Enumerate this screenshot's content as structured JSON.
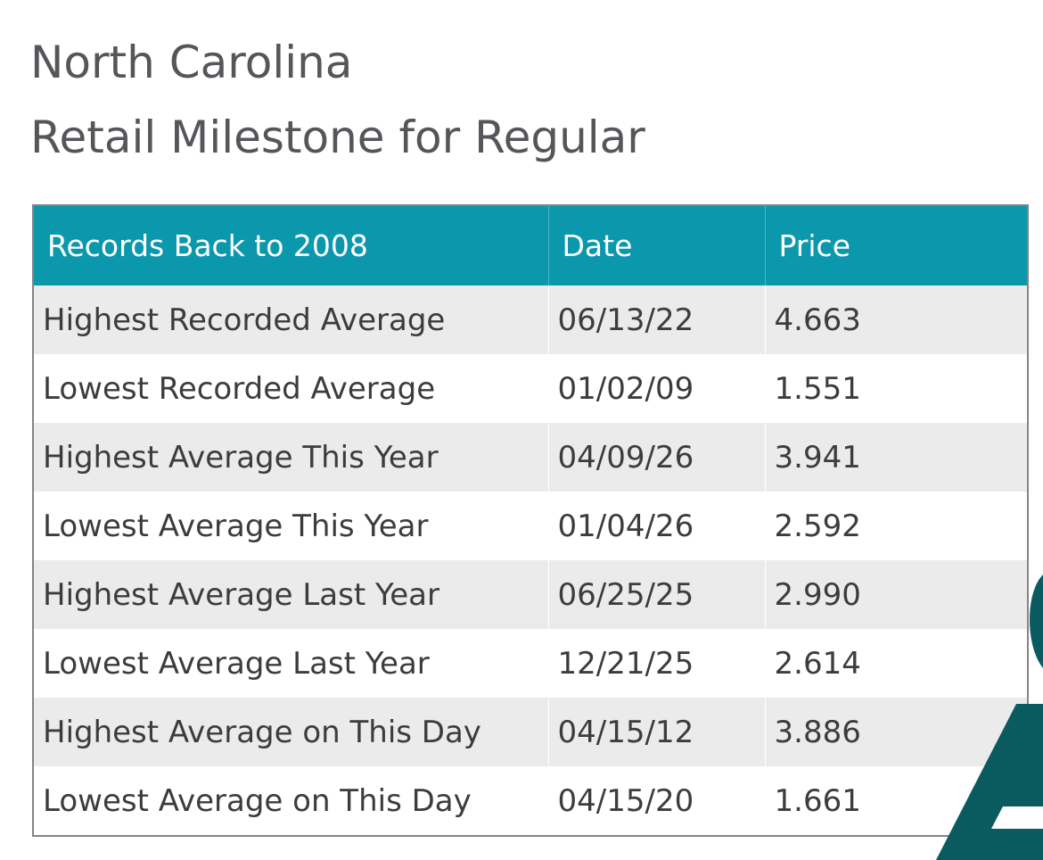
{
  "heading": {
    "line1": "North Carolina",
    "line2": "Retail Milestone for Regular"
  },
  "table": {
    "headers": [
      "Records Back to 2008",
      "Date",
      "Price"
    ],
    "rows": [
      {
        "label": "Highest Recorded Average",
        "date": "06/13/22",
        "price": "4.663"
      },
      {
        "label": "Lowest Recorded Average",
        "date": "01/02/09",
        "price": "1.551"
      },
      {
        "label": "Highest Average This Year",
        "date": "04/09/26",
        "price": "3.941"
      },
      {
        "label": "Lowest Average This Year",
        "date": "01/04/26",
        "price": "2.592"
      },
      {
        "label": "Highest Average Last Year",
        "date": "06/25/25",
        "price": "2.990"
      },
      {
        "label": "Lowest Average Last Year",
        "date": "12/21/25",
        "price": "2.614"
      },
      {
        "label": "Highest Average on This Day",
        "date": "04/15/12",
        "price": "3.886"
      },
      {
        "label": "Lowest Average on This Day",
        "date": "04/15/20",
        "price": "1.661"
      }
    ]
  },
  "colors": {
    "header_bg": "#0b98ad",
    "stripe": "#ebebeb",
    "title_text": "#555659",
    "deco": "#0a5b60"
  }
}
